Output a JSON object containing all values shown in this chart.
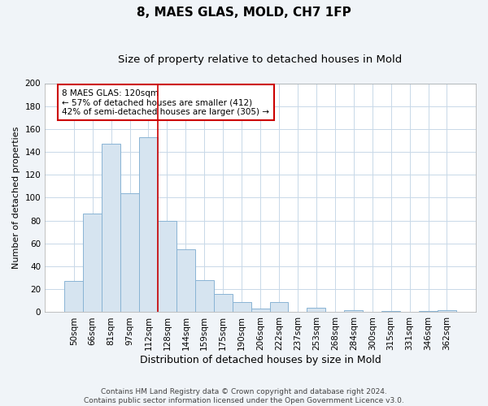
{
  "title": "8, MAES GLAS, MOLD, CH7 1FP",
  "subtitle": "Size of property relative to detached houses in Mold",
  "xlabel": "Distribution of detached houses by size in Mold",
  "ylabel": "Number of detached properties",
  "bar_labels": [
    "50sqm",
    "66sqm",
    "81sqm",
    "97sqm",
    "112sqm",
    "128sqm",
    "144sqm",
    "159sqm",
    "175sqm",
    "190sqm",
    "206sqm",
    "222sqm",
    "237sqm",
    "253sqm",
    "268sqm",
    "284sqm",
    "300sqm",
    "315sqm",
    "331sqm",
    "346sqm",
    "362sqm"
  ],
  "bar_values": [
    27,
    86,
    147,
    104,
    153,
    80,
    55,
    28,
    16,
    9,
    3,
    9,
    0,
    4,
    0,
    2,
    0,
    1,
    0,
    1,
    2
  ],
  "bar_color": "#d6e4f0",
  "bar_edge_color": "#89b4d4",
  "highlight_line_color": "#cc0000",
  "highlight_line_index": 4,
  "annotation_line1": "8 MAES GLAS: 120sqm",
  "annotation_line2": "← 57% of detached houses are smaller (412)",
  "annotation_line3": "42% of semi-detached houses are larger (305) →",
  "annotation_box_edge_color": "#cc0000",
  "ylim": [
    0,
    200
  ],
  "yticks": [
    0,
    20,
    40,
    60,
    80,
    100,
    120,
    140,
    160,
    180,
    200
  ],
  "grid_color": "#c8d8e8",
  "plot_bg_color": "#ffffff",
  "fig_bg_color": "#f0f4f8",
  "footer_line1": "Contains HM Land Registry data © Crown copyright and database right 2024.",
  "footer_line2": "Contains public sector information licensed under the Open Government Licence v3.0.",
  "title_fontsize": 11,
  "subtitle_fontsize": 9.5,
  "xlabel_fontsize": 9,
  "ylabel_fontsize": 8,
  "tick_fontsize": 7.5,
  "annotation_fontsize": 7.5,
  "footer_fontsize": 6.5
}
